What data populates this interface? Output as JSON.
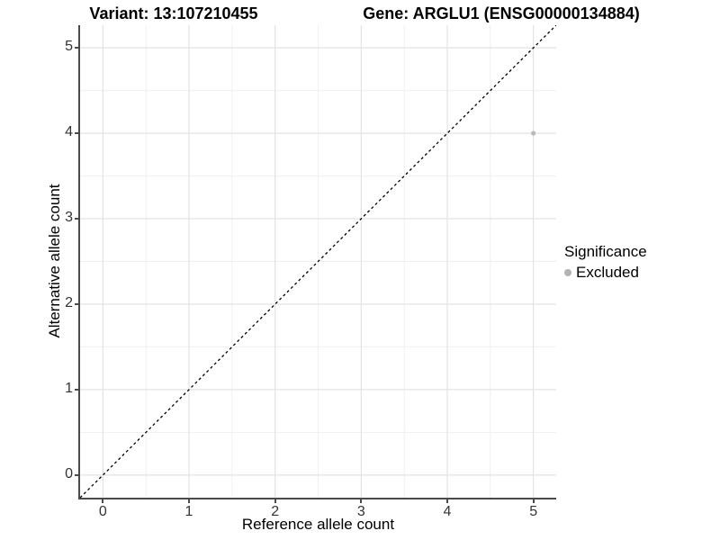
{
  "header": {
    "variant_title": "Variant: 13:107210455",
    "gene_title": "Gene: ARGLU1 (ENSG00000134884)"
  },
  "axes": {
    "x": {
      "label": "Reference allele count",
      "tick_labels": [
        "0",
        "1",
        "2",
        "3",
        "4",
        "5"
      ]
    },
    "y": {
      "label": "Alternative allele count",
      "tick_labels": [
        "0",
        "1",
        "2",
        "3",
        "4",
        "5"
      ]
    }
  },
  "legend": {
    "title": "Significance",
    "items": [
      {
        "label": "Excluded",
        "color": "#b3b3b3"
      }
    ]
  },
  "colors": {
    "point": "#b8b8b8",
    "grid_major": "#e3e3e3",
    "grid_minor": "#efefef",
    "axis_line": "#4a4a4a",
    "tick_label": "#333333",
    "identity_line": "#000000"
  },
  "chart_data": {
    "type": "scatter",
    "title": "Variant: 13:107210455 — Gene: ARGLU1 (ENSG00000134884)",
    "xlabel": "Reference allele count",
    "ylabel": "Alternative allele count",
    "xlim": [
      -0.265,
      5.265
    ],
    "ylim": [
      -0.265,
      5.265
    ],
    "x_ticks": [
      0,
      1,
      2,
      3,
      4,
      5
    ],
    "y_ticks": [
      0,
      1,
      2,
      3,
      4,
      5
    ],
    "grid": {
      "major": true,
      "minor": true
    },
    "legend_position": "right",
    "series": [
      {
        "name": "Excluded",
        "color": "#b8b8b8",
        "points": [
          {
            "x": 5,
            "y": 4
          }
        ]
      }
    ],
    "reference_line": {
      "kind": "identity y=x",
      "style": "dashed",
      "color": "#000000"
    }
  }
}
